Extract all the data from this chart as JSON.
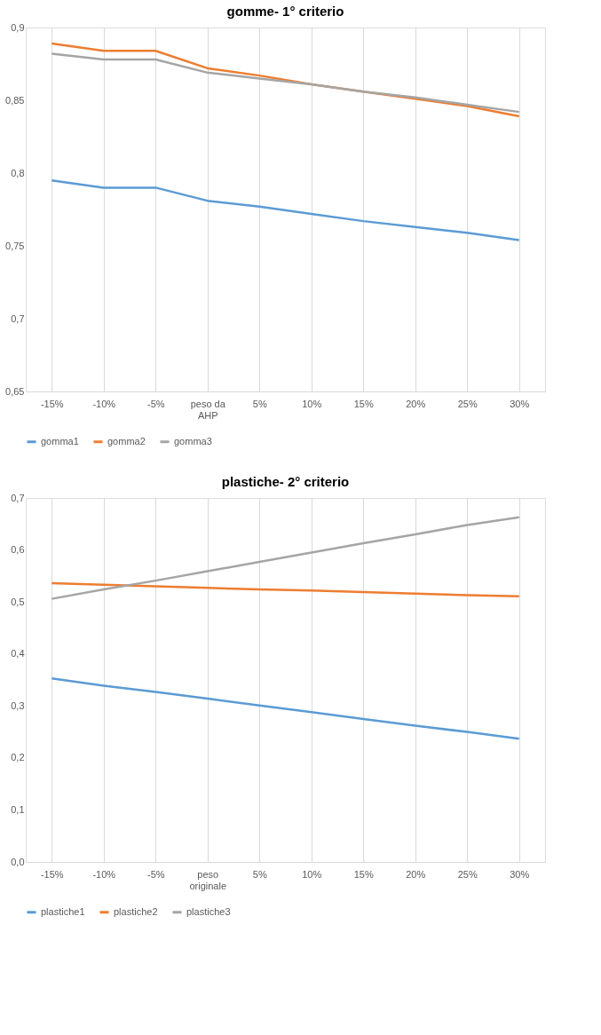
{
  "chart_data": [
    {
      "type": "line",
      "title": "gomme- 1° criterio",
      "categories": [
        "-15%",
        "-10%",
        "-5%",
        "peso da AHP",
        "5%",
        "10%",
        "15%",
        "20%",
        "25%",
        "30%"
      ],
      "series": [
        {
          "name": "gomma1",
          "color": "#5b9bd5",
          "values": [
            0.795,
            0.79,
            0.79,
            0.781,
            0.777,
            0.772,
            0.767,
            0.763,
            0.759,
            0.754
          ]
        },
        {
          "name": "gomma2",
          "color": "#ed7d31",
          "values": [
            0.889,
            0.884,
            0.884,
            0.872,
            0.867,
            0.861,
            0.856,
            0.851,
            0.846,
            0.839
          ]
        },
        {
          "name": "gomma3",
          "color": "#a5a5a5",
          "values": [
            0.882,
            0.878,
            0.878,
            0.869,
            0.865,
            0.861,
            0.856,
            0.852,
            0.847,
            0.842
          ]
        }
      ],
      "ylim": [
        0.65,
        0.9
      ],
      "yticks": [
        {
          "value": 0.65,
          "label": "0,65"
        },
        {
          "value": 0.7,
          "label": "0,7"
        },
        {
          "value": 0.75,
          "label": "0,75"
        },
        {
          "value": 0.8,
          "label": "0,8"
        },
        {
          "value": 0.85,
          "label": "0,85"
        },
        {
          "value": 0.9,
          "label": "0,9"
        }
      ],
      "grid": "x",
      "legend": "bottom",
      "marker": "none",
      "line_style": "solid"
    },
    {
      "type": "line",
      "title": "plastiche- 2° criterio",
      "categories": [
        "-15%",
        "-10%",
        "-5%",
        "peso originale",
        "5%",
        "10%",
        "15%",
        "20%",
        "25%",
        "30%"
      ],
      "series": [
        {
          "name": "plastiche1",
          "color": "#5b9bd5",
          "values": [
            0.353,
            0.339,
            0.327,
            0.314,
            0.301,
            0.288,
            0.275,
            0.262,
            0.25,
            0.237
          ]
        },
        {
          "name": "plastiche2",
          "color": "#ed7d31",
          "values": [
            0.536,
            0.533,
            0.53,
            0.527,
            0.524,
            0.522,
            0.519,
            0.516,
            0.513,
            0.511
          ]
        },
        {
          "name": "plastiche3",
          "color": "#a5a5a5",
          "values": [
            0.506,
            0.524,
            0.541,
            0.559,
            0.577,
            0.595,
            0.613,
            0.63,
            0.648,
            0.663
          ]
        }
      ],
      "ylim": [
        0.0,
        0.7
      ],
      "yticks": [
        {
          "value": 0.0,
          "label": "0,0"
        },
        {
          "value": 0.1,
          "label": "0,1"
        },
        {
          "value": 0.2,
          "label": "0,2"
        },
        {
          "value": 0.3,
          "label": "0,3"
        },
        {
          "value": 0.4,
          "label": "0,4"
        },
        {
          "value": 0.5,
          "label": "0,5"
        },
        {
          "value": 0.6,
          "label": "0,6"
        },
        {
          "value": 0.7,
          "label": "0,7"
        }
      ],
      "grid": "x",
      "legend": "bottom",
      "marker": "none",
      "line_style": "solid"
    }
  ]
}
